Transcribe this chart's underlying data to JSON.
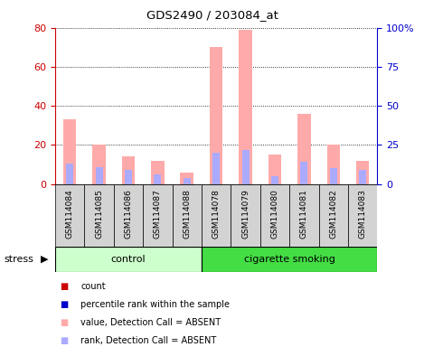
{
  "title": "GDS2490 / 203084_at",
  "samples": [
    "GSM114084",
    "GSM114085",
    "GSM114086",
    "GSM114087",
    "GSM114088",
    "GSM114078",
    "GSM114079",
    "GSM114080",
    "GSM114081",
    "GSM114082",
    "GSM114083"
  ],
  "pink_bars": [
    33,
    20,
    14,
    12,
    6,
    70,
    79,
    15,
    36,
    20,
    12
  ],
  "blue_bars": [
    13,
    11,
    9,
    6,
    4,
    20,
    22,
    5,
    14,
    10,
    9
  ],
  "left_ylim": [
    0,
    80
  ],
  "right_ylim": [
    0,
    100
  ],
  "left_yticks": [
    0,
    20,
    40,
    60,
    80
  ],
  "right_yticks": [
    0,
    25,
    50,
    75,
    100
  ],
  "right_yticklabels": [
    "0",
    "25",
    "50",
    "75",
    "100%"
  ],
  "left_color": "#cc0000",
  "right_color": "#0000cc",
  "pink_color": "#ffaaaa",
  "lightblue_color": "#aaaaff",
  "control_samples": 5,
  "cigarette_samples": 6,
  "control_label": "control",
  "cigarette_label": "cigarette smoking",
  "stress_label": "stress",
  "control_bg": "#ccffcc",
  "cigarette_bg": "#44dd44",
  "sample_bg": "#d3d3d3",
  "legend_items": [
    {
      "color": "#cc0000",
      "label": "count"
    },
    {
      "color": "#0000cc",
      "label": "percentile rank within the sample"
    },
    {
      "color": "#ffaaaa",
      "label": "value, Detection Call = ABSENT"
    },
    {
      "color": "#aaaaff",
      "label": "rank, Detection Call = ABSENT"
    }
  ]
}
